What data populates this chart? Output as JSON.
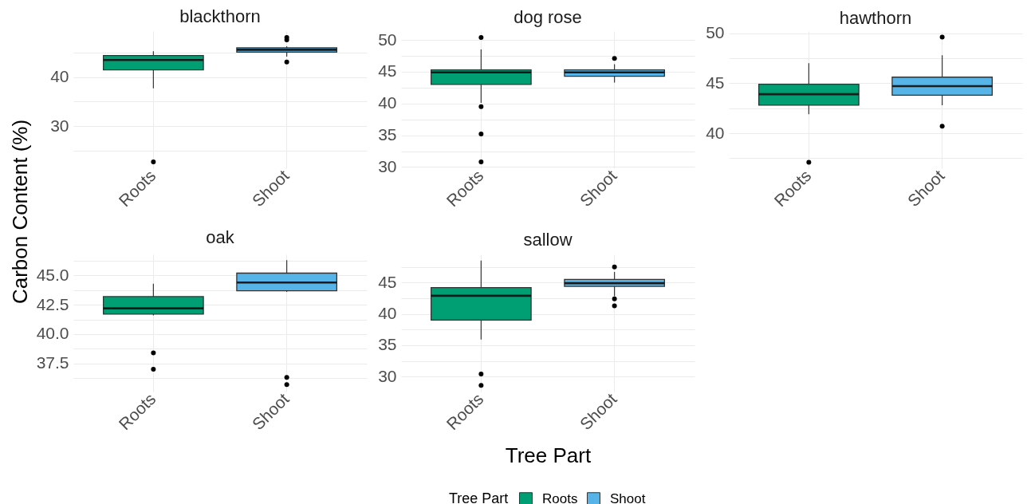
{
  "chart_data": [
    {
      "type": "box",
      "title": "blackthorn",
      "ylabel": "Carbon Content (%)",
      "categories": [
        "Roots",
        "Shoot"
      ],
      "series": [
        {
          "color": "#009e73",
          "boxes": [
            {
              "low": 37.7,
              "q1": 41.5,
              "median": 43.5,
              "q3": 44.4,
              "high": 45.3,
              "outliers": [
                22.7
              ]
            },
            null
          ]
        },
        {
          "color": "#56b4e9",
          "boxes": [
            null,
            {
              "low": 44.2,
              "q1": 45.1,
              "median": 45.6,
              "q3": 46.0,
              "high": 46.3,
              "outliers": [
                48.1,
                47.6,
                43.1
              ]
            }
          ]
        }
      ],
      "ylim": [
        21.4,
        49.4
      ],
      "yticks": [
        {
          "value": 25,
          "label": null
        },
        30,
        {
          "value": 35,
          "label": null
        },
        40,
        {
          "value": 45,
          "label": null
        }
      ],
      "grid": true
    },
    {
      "type": "box",
      "title": "dog rose",
      "categories": [
        "Roots",
        "Shoot"
      ],
      "series": [
        {
          "color": "#009e73",
          "boxes": [
            {
              "low": 40.1,
              "q1": 43.0,
              "median": 44.9,
              "q3": 45.3,
              "high": 48.5,
              "outliers": [
                50.4,
                39.5,
                35.2,
                30.8
              ]
            },
            null
          ]
        },
        {
          "color": "#56b4e9",
          "boxes": [
            null,
            {
              "low": 43.3,
              "q1": 44.3,
              "median": 44.9,
              "q3": 45.3,
              "high": 46.2,
              "outliers": [
                47.1
              ]
            }
          ]
        }
      ],
      "ylim": [
        29.8,
        51.4
      ],
      "yticks": [
        30,
        {
          "value": 32.5,
          "label": null
        },
        35,
        {
          "value": 37.5,
          "label": null
        },
        40,
        {
          "value": 42.5,
          "label": null
        },
        45,
        {
          "value": 47.5,
          "label": null
        },
        50
      ],
      "grid": true
    },
    {
      "type": "box",
      "title": "hawthorn",
      "categories": [
        "Roots",
        "Shoot"
      ],
      "series": [
        {
          "color": "#009e73",
          "boxes": [
            {
              "low": 41.9,
              "q1": 42.8,
              "median": 43.9,
              "q3": 44.9,
              "high": 47.0,
              "outliers": [
                37.1
              ]
            },
            null
          ]
        },
        {
          "color": "#56b4e9",
          "boxes": [
            null,
            {
              "low": 42.8,
              "q1": 43.8,
              "median": 44.7,
              "q3": 45.6,
              "high": 47.8,
              "outliers": [
                49.6,
                40.7
              ]
            }
          ]
        }
      ],
      "ylim": [
        36.5,
        50.2
      ],
      "yticks": [
        {
          "value": 37.5,
          "label": null
        },
        40,
        {
          "value": 42.5,
          "label": null
        },
        45,
        {
          "value": 47.5,
          "label": null
        },
        50
      ],
      "grid": true
    },
    {
      "type": "box",
      "title": "oak",
      "categories": [
        "Roots",
        "Shoot"
      ],
      "series": [
        {
          "color": "#009e73",
          "boxes": [
            {
              "low": 41.6,
              "q1": 41.7,
              "median": 42.2,
              "q3": 43.2,
              "high": 44.3,
              "outliers": [
                38.4,
                37.0
              ]
            },
            null
          ]
        },
        {
          "color": "#56b4e9",
          "boxes": [
            null,
            {
              "low": 43.6,
              "q1": 43.7,
              "median": 44.4,
              "q3": 45.2,
              "high": 46.3,
              "outliers": [
                36.3,
                35.7
              ]
            }
          ]
        }
      ],
      "ylim": [
        35.1,
        46.8
      ],
      "yticks": [
        {
          "value": 36.25,
          "label": null
        },
        37.5,
        {
          "value": 38.75,
          "label": null
        },
        {
          "value": 40,
          "label": "40.0"
        },
        {
          "value": 41.25,
          "label": null
        },
        42.5,
        {
          "value": 43.75,
          "label": null
        },
        {
          "value": 45,
          "label": "45.0"
        },
        {
          "value": 46.25,
          "label": null
        }
      ],
      "grid": true
    },
    {
      "type": "box",
      "title": "sallow",
      "xlabel": "Tree Part",
      "legend": "bottom",
      "legend_title": "Tree Part",
      "categories": [
        "Roots",
        "Shoot"
      ],
      "series": [
        {
          "name": "Roots",
          "color": "#009e73",
          "boxes": [
            {
              "low": 35.9,
              "q1": 39.0,
              "median": 42.9,
              "q3": 44.2,
              "high": 48.5,
              "outliers": [
                30.4,
                28.6
              ]
            },
            null
          ]
        },
        {
          "name": "Shoot",
          "color": "#56b4e9",
          "boxes": [
            null,
            {
              "low": 42.8,
              "q1": 44.4,
              "median": 44.9,
              "q3": 45.5,
              "high": 46.7,
              "outliers": [
                47.5,
                42.4,
                41.3
              ]
            }
          ]
        }
      ],
      "ylim": [
        27.6,
        49.5
      ],
      "yticks": [
        30,
        {
          "value": 32.5,
          "label": null
        },
        35,
        {
          "value": 37.5,
          "label": null
        },
        40,
        {
          "value": 42.5,
          "label": null
        },
        45,
        {
          "value": 47.5,
          "label": null
        }
      ],
      "grid": true
    }
  ]
}
